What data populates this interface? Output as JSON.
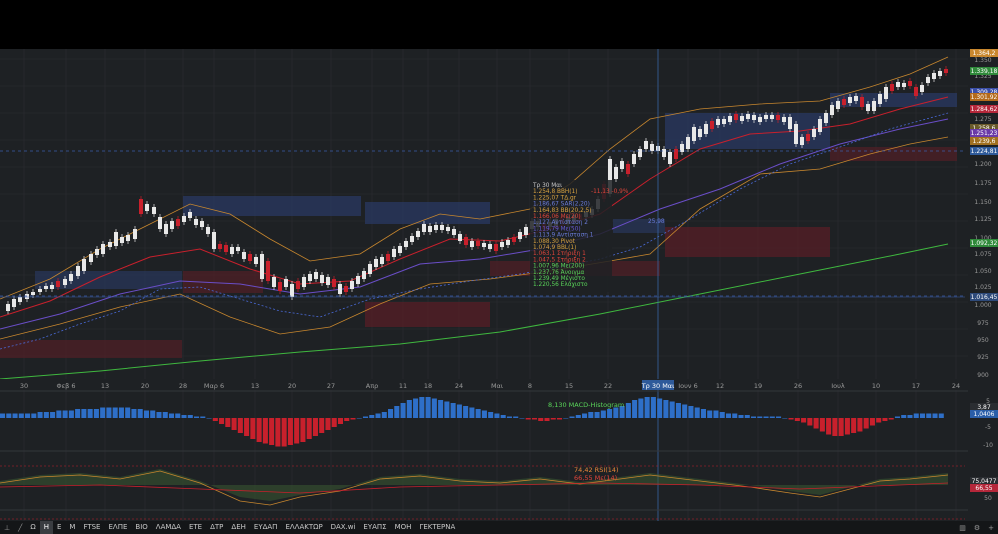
{
  "price_axis": {
    "ticks": [
      "1.350",
      "1.325",
      "1.275",
      "1.200",
      "1.175",
      "1.150",
      "1.125",
      "1.100",
      "1.075",
      "1.050",
      "1.025",
      "1.000",
      "975",
      "950",
      "925",
      "900"
    ],
    "badges": [
      {
        "label": "1.364,2",
        "color": "#c8872e"
      },
      {
        "label": "1.339,18",
        "color": "#2f8a3a"
      },
      {
        "label": "1.309,28",
        "color": "#3a4ea8"
      },
      {
        "label": "1.301,92",
        "color": "#b46a1a"
      },
      {
        "label": "1.284,62",
        "color": "#b5273a"
      },
      {
        "label": "1.258,6",
        "color": "#6a5a2a"
      },
      {
        "label": "1.251,23",
        "color": "#6a3aa8"
      },
      {
        "label": "1.239,6",
        "color": "#a07020"
      },
      {
        "label": "1.224,81",
        "color": "#2e5a9a"
      },
      {
        "label": "1.092,32",
        "color": "#2f8a3a"
      },
      {
        "label": "1.016,45",
        "color": "#2e4a7a"
      }
    ]
  },
  "time_axis": {
    "labels": [
      "30",
      "Φεβ 6",
      "13",
      "20",
      "28",
      "Μαρ 6",
      "13",
      "20",
      "27",
      "Απρ",
      "11",
      "18",
      "24",
      "Μαι",
      "8",
      "15",
      "22",
      "Τρ 30 Μαι",
      "Ιουν 6",
      "12",
      "19",
      "26",
      "Ιουλ",
      "10",
      "17",
      "24"
    ],
    "crosshair_label": "Τρ 30 Μαι"
  },
  "tooltip": {
    "lines": [
      {
        "text": "Τρ 30 Μαι",
        "color": "#c9c9c9"
      },
      {
        "text": "1.254,8 ΒΒΗ(1)",
        "color": "#d9a441"
      },
      {
        "text": "1.225,07 ΤΔ.gr",
        "color": "#d9a441"
      },
      {
        "text": "-11,13 -0,9%",
        "color": "#e0453a"
      },
      {
        "text": "1.186,67 SAR(2,20)",
        "color": "#6a7bd9"
      },
      {
        "text": "1.164,83 ΒΒ(20,2,5)",
        "color": "#d9a441"
      },
      {
        "text": "1.166,06 Με(20)",
        "color": "#e0453a"
      },
      {
        "text": "1.127 Αντίσταση 2",
        "color": "#6a7bd9"
      },
      {
        "text": "1.119,79 Με(50)",
        "color": "#6a5ad9"
      },
      {
        "text": "1.113,9 Αντίσταση 1",
        "color": "#6a7bd9"
      },
      {
        "text": "1.088,30 Pivot",
        "color": "#d9a441"
      },
      {
        "text": "1.074,9 ΒΒL(1)",
        "color": "#d9a441"
      },
      {
        "text": "1.063,1 Στήριξη 1",
        "color": "#e0453a"
      },
      {
        "text": "1.047,5 Στήριξη 2",
        "color": "#e0453a"
      },
      {
        "text": "1.007,96 Με(200)",
        "color": "#5ad65a"
      },
      {
        "text": "1.237,76 Άνοιγμα",
        "color": "#5ad65a"
      },
      {
        "text": "1.239,49 Μέγιστο",
        "color": "#5ad65a"
      },
      {
        "text": "1.220,56 Ελάχιστο",
        "color": "#5ad65a"
      }
    ],
    "extra": "25,98"
  },
  "macd": {
    "title": "8,130 MACD-Histogram",
    "axis_ticks": [
      "5",
      "-5",
      "-10"
    ],
    "badges": [
      {
        "label": "3,87",
        "color": "#2a2d31"
      },
      {
        "label": "1,0406",
        "color": "#2a5ea8"
      }
    ]
  },
  "rsi": {
    "title_rsi": "74,42 RSI(14)",
    "title_ma": "66,55 Με(14)",
    "axis_ticks": [
      "50"
    ],
    "badges": [
      {
        "label": "75,0477",
        "color": "#2a2d31"
      },
      {
        "label": "66,55",
        "color": "#b5273a"
      }
    ]
  },
  "toolbar": {
    "items": [
      "Ω",
      "Η",
      "Ε",
      "Μ",
      "FTSE",
      "ΕΛΠΕ",
      "ΒΙΟ",
      "ΛΑΜΔΑ",
      "ΕΤΕ",
      "ΔΤΡ",
      "ΔΕΗ",
      "ΕΥΔΑΠ",
      "ΕΛΛΑΚΤΩΡ",
      "DAX.wi",
      "ΕΥΑΠΣ",
      "ΜΟΗ",
      "ΓΕΚΤΕΡΝΑ"
    ],
    "active": "Η"
  },
  "colors": {
    "up": "#e8e8e8",
    "down": "#c8202c",
    "macd_pos": "#2e6fc8",
    "macd_neg": "#c8202c",
    "ma200": "#3fb83f",
    "bb": "#c8872e",
    "ma20": "#c8202c",
    "ma50": "#6a4ec8",
    "sar": "#4a6ad8",
    "rsi": "#c8872e"
  }
}
